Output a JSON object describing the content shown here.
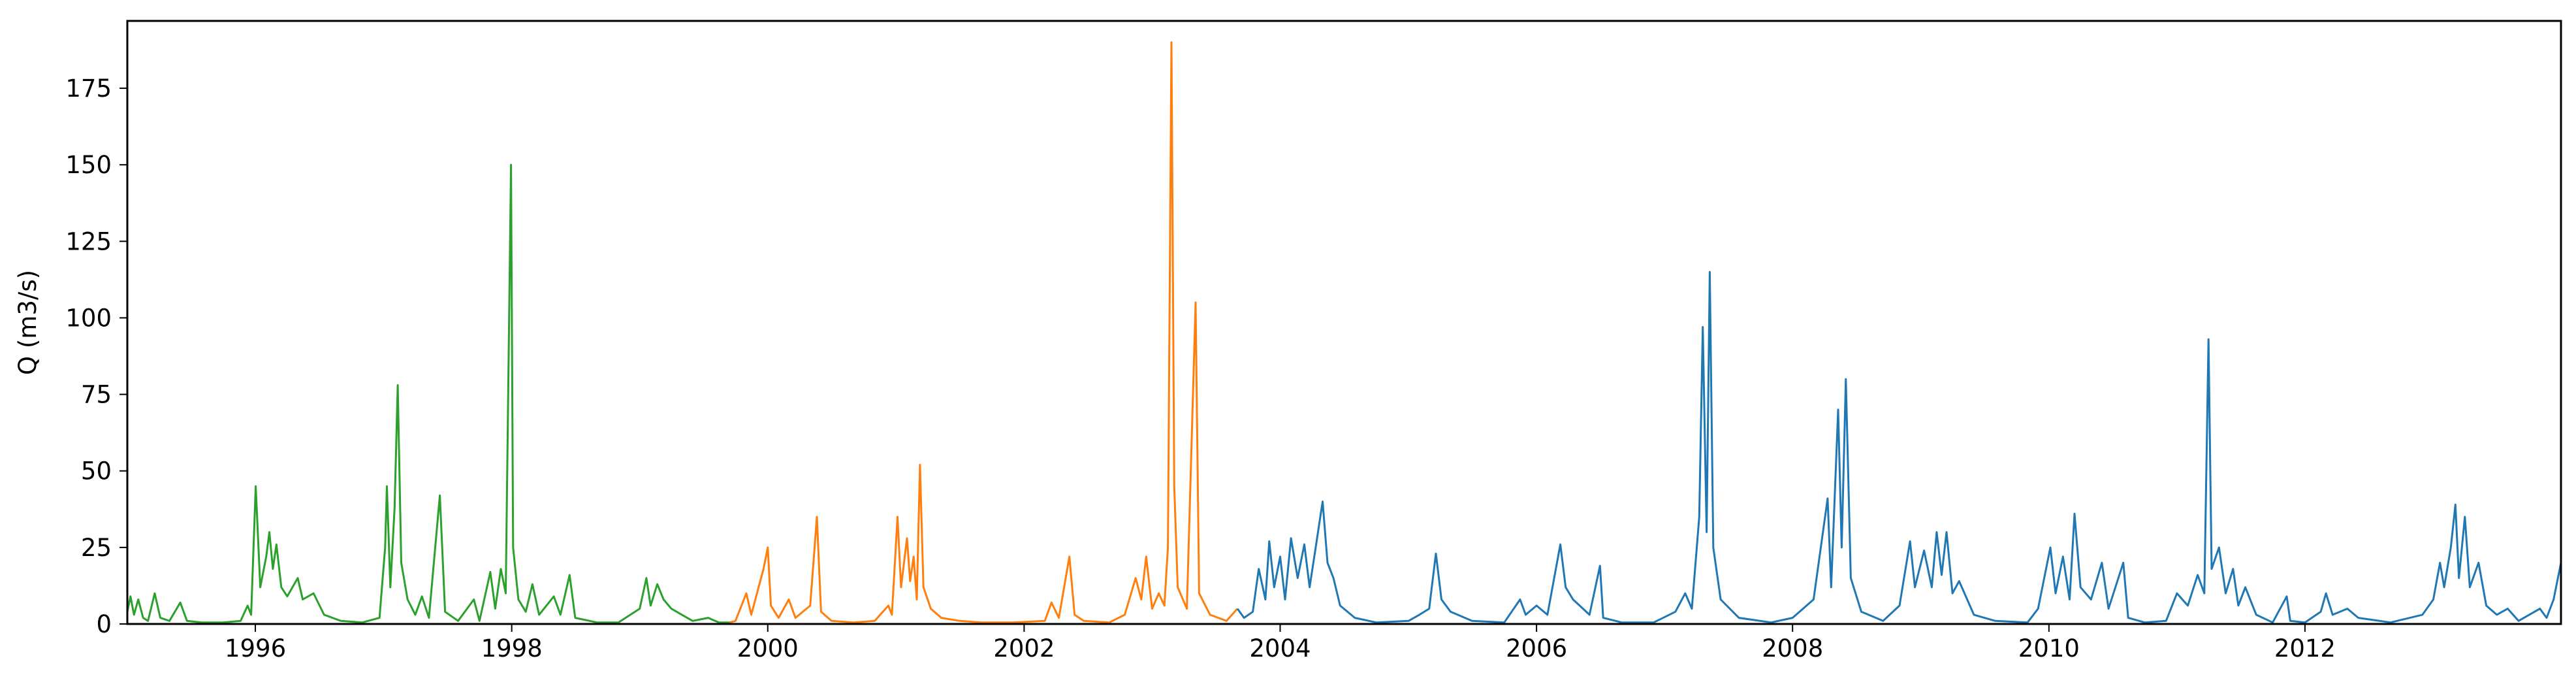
{
  "chart_data": {
    "type": "line",
    "title": "",
    "xlabel": "",
    "ylabel": "Q (m3/s)",
    "x_range": [
      "1995-01-01",
      "2013-12-31"
    ],
    "ylim": [
      0,
      197
    ],
    "x_ticks": [
      "1996",
      "1998",
      "2000",
      "2002",
      "2004",
      "2006",
      "2008",
      "2010",
      "2012"
    ],
    "y_ticks": [
      "0",
      "25",
      "50",
      "75",
      "100",
      "125",
      "150",
      "175"
    ],
    "grid": false,
    "legend": "none",
    "series": [
      {
        "color": "#2ca02c",
        "points": [
          [
            "1995-01-01",
            4
          ],
          [
            "1995-01-10",
            9
          ],
          [
            "1995-01-20",
            3
          ],
          [
            "1995-02-01",
            8
          ],
          [
            "1995-02-15",
            2
          ],
          [
            "1995-03-01",
            1
          ],
          [
            "1995-03-20",
            10
          ],
          [
            "1995-04-05",
            2
          ],
          [
            "1995-05-01",
            1
          ],
          [
            "1995-06-01",
            7
          ],
          [
            "1995-06-20",
            1
          ],
          [
            "1995-08-01",
            0.5
          ],
          [
            "1995-10-01",
            0.5
          ],
          [
            "1995-11-20",
            1
          ],
          [
            "1995-12-10",
            6
          ],
          [
            "1995-12-20",
            3
          ],
          [
            "1996-01-02",
            45
          ],
          [
            "1996-01-15",
            12
          ],
          [
            "1996-02-01",
            22
          ],
          [
            "1996-02-10",
            30
          ],
          [
            "1996-02-20",
            18
          ],
          [
            "1996-03-01",
            26
          ],
          [
            "1996-03-15",
            12
          ],
          [
            "1996-04-01",
            9
          ],
          [
            "1996-05-01",
            15
          ],
          [
            "1996-05-15",
            8
          ],
          [
            "1996-06-15",
            10
          ],
          [
            "1996-07-15",
            3
          ],
          [
            "1996-09-01",
            1
          ],
          [
            "1996-11-01",
            0.5
          ],
          [
            "1996-12-20",
            2
          ],
          [
            "1997-01-05",
            25
          ],
          [
            "1997-01-10",
            45
          ],
          [
            "1997-01-20",
            12
          ],
          [
            "1997-02-01",
            38
          ],
          [
            "1997-02-10",
            78
          ],
          [
            "1997-02-20",
            20
          ],
          [
            "1997-03-10",
            8
          ],
          [
            "1997-04-01",
            3
          ],
          [
            "1997-04-20",
            9
          ],
          [
            "1997-05-10",
            2
          ],
          [
            "1997-06-10",
            42
          ],
          [
            "1997-06-25",
            4
          ],
          [
            "1997-08-01",
            1
          ],
          [
            "1997-09-15",
            8
          ],
          [
            "1997-10-01",
            1
          ],
          [
            "1997-11-01",
            17
          ],
          [
            "1997-11-15",
            5
          ],
          [
            "1997-12-01",
            18
          ],
          [
            "1997-12-15",
            10
          ],
          [
            "1997-12-30",
            150
          ],
          [
            "1998-01-05",
            25
          ],
          [
            "1998-01-20",
            8
          ],
          [
            "1998-02-10",
            4
          ],
          [
            "1998-03-01",
            13
          ],
          [
            "1998-03-20",
            3
          ],
          [
            "1998-05-01",
            9
          ],
          [
            "1998-05-20",
            3
          ],
          [
            "1998-06-15",
            16
          ],
          [
            "1998-07-01",
            2
          ],
          [
            "1998-09-01",
            0.5
          ],
          [
            "1998-11-01",
            0.5
          ],
          [
            "1999-01-01",
            5
          ],
          [
            "1999-01-20",
            15
          ],
          [
            "1999-02-01",
            6
          ],
          [
            "1999-02-20",
            13
          ],
          [
            "1999-03-10",
            8
          ],
          [
            "1999-04-01",
            5
          ],
          [
            "1999-05-01",
            3
          ],
          [
            "1999-06-01",
            1
          ],
          [
            "1999-07-15",
            2
          ],
          [
            "1999-08-15",
            0.5
          ],
          [
            "1999-09-15",
            0.5
          ]
        ]
      },
      {
        "color": "#ff7f0e",
        "points": [
          [
            "1999-09-15",
            0.5
          ],
          [
            "1999-10-01",
            1
          ],
          [
            "1999-11-01",
            10
          ],
          [
            "1999-11-15",
            3
          ],
          [
            "1999-12-20",
            18
          ],
          [
            "2000-01-01",
            25
          ],
          [
            "2000-01-10",
            6
          ],
          [
            "2000-02-01",
            2
          ],
          [
            "2000-03-01",
            8
          ],
          [
            "2000-03-20",
            2
          ],
          [
            "2000-05-01",
            6
          ],
          [
            "2000-05-20",
            35
          ],
          [
            "2000-06-01",
            4
          ],
          [
            "2000-07-01",
            1
          ],
          [
            "2000-09-01",
            0.5
          ],
          [
            "2000-11-01",
            1
          ],
          [
            "2000-12-10",
            6
          ],
          [
            "2000-12-20",
            3
          ],
          [
            "2001-01-05",
            35
          ],
          [
            "2001-01-15",
            12
          ],
          [
            "2001-02-01",
            28
          ],
          [
            "2001-02-10",
            14
          ],
          [
            "2001-02-20",
            22
          ],
          [
            "2001-03-01",
            8
          ],
          [
            "2001-03-10",
            52
          ],
          [
            "2001-03-20",
            12
          ],
          [
            "2001-04-10",
            5
          ],
          [
            "2001-05-10",
            2
          ],
          [
            "2001-07-01",
            1
          ],
          [
            "2001-09-01",
            0.5
          ],
          [
            "2001-12-01",
            0.5
          ],
          [
            "2002-03-01",
            1
          ],
          [
            "2002-03-20",
            7
          ],
          [
            "2002-04-10",
            2
          ],
          [
            "2002-05-10",
            22
          ],
          [
            "2002-05-25",
            3
          ],
          [
            "2002-06-20",
            1
          ],
          [
            "2002-09-01",
            0.5
          ],
          [
            "2002-10-15",
            3
          ],
          [
            "2002-11-15",
            15
          ],
          [
            "2002-12-01",
            8
          ],
          [
            "2002-12-15",
            22
          ],
          [
            "2003-01-01",
            5
          ],
          [
            "2003-01-20",
            10
          ],
          [
            "2003-02-05",
            6
          ],
          [
            "2003-02-15",
            25
          ],
          [
            "2003-02-25",
            190
          ],
          [
            "2003-03-05",
            45
          ],
          [
            "2003-03-15",
            12
          ],
          [
            "2003-04-10",
            5
          ],
          [
            "2003-05-05",
            105
          ],
          [
            "2003-05-15",
            10
          ],
          [
            "2003-06-15",
            3
          ],
          [
            "2003-08-01",
            1
          ],
          [
            "2003-09-01",
            5
          ]
        ]
      },
      {
        "color": "#1f77b4",
        "points": [
          [
            "2003-09-01",
            5
          ],
          [
            "2003-09-20",
            2
          ],
          [
            "2003-10-15",
            4
          ],
          [
            "2003-11-01",
            18
          ],
          [
            "2003-11-20",
            8
          ],
          [
            "2003-12-01",
            27
          ],
          [
            "2003-12-15",
            12
          ],
          [
            "2004-01-01",
            22
          ],
          [
            "2004-01-15",
            8
          ],
          [
            "2004-02-01",
            28
          ],
          [
            "2004-02-20",
            15
          ],
          [
            "2004-03-10",
            26
          ],
          [
            "2004-03-25",
            12
          ],
          [
            "2004-04-10",
            24
          ],
          [
            "2004-05-01",
            40
          ],
          [
            "2004-05-15",
            20
          ],
          [
            "2004-06-01",
            15
          ],
          [
            "2004-06-20",
            6
          ],
          [
            "2004-08-01",
            2
          ],
          [
            "2004-10-01",
            0.5
          ],
          [
            "2005-01-01",
            1
          ],
          [
            "2005-02-01",
            3
          ],
          [
            "2005-03-01",
            5
          ],
          [
            "2005-03-20",
            23
          ],
          [
            "2005-04-05",
            8
          ],
          [
            "2005-05-01",
            4
          ],
          [
            "2005-07-01",
            1
          ],
          [
            "2005-10-01",
            0.5
          ],
          [
            "2005-11-15",
            8
          ],
          [
            "2005-12-01",
            3
          ],
          [
            "2006-01-01",
            6
          ],
          [
            "2006-02-01",
            3
          ],
          [
            "2006-03-10",
            26
          ],
          [
            "2006-03-25",
            12
          ],
          [
            "2006-04-15",
            8
          ],
          [
            "2006-06-01",
            3
          ],
          [
            "2006-07-01",
            19
          ],
          [
            "2006-07-10",
            2
          ],
          [
            "2006-09-01",
            0.5
          ],
          [
            "2006-12-01",
            0.5
          ],
          [
            "2007-02-01",
            4
          ],
          [
            "2007-03-01",
            10
          ],
          [
            "2007-03-20",
            5
          ],
          [
            "2007-04-10",
            35
          ],
          [
            "2007-04-20",
            97
          ],
          [
            "2007-05-01",
            30
          ],
          [
            "2007-05-10",
            115
          ],
          [
            "2007-05-20",
            25
          ],
          [
            "2007-06-10",
            8
          ],
          [
            "2007-08-01",
            2
          ],
          [
            "2007-11-01",
            0.5
          ],
          [
            "2008-01-01",
            2
          ],
          [
            "2008-03-01",
            8
          ],
          [
            "2008-04-10",
            41
          ],
          [
            "2008-04-20",
            12
          ],
          [
            "2008-05-10",
            70
          ],
          [
            "2008-05-20",
            25
          ],
          [
            "2008-06-01",
            80
          ],
          [
            "2008-06-15",
            15
          ],
          [
            "2008-07-15",
            4
          ],
          [
            "2008-09-15",
            1
          ],
          [
            "2008-11-01",
            6
          ],
          [
            "2008-12-01",
            27
          ],
          [
            "2008-12-15",
            12
          ],
          [
            "2009-01-10",
            24
          ],
          [
            "2009-02-01",
            12
          ],
          [
            "2009-02-15",
            30
          ],
          [
            "2009-03-01",
            16
          ],
          [
            "2009-03-15",
            30
          ],
          [
            "2009-04-01",
            10
          ],
          [
            "2009-04-20",
            14
          ],
          [
            "2009-06-01",
            3
          ],
          [
            "2009-08-01",
            1
          ],
          [
            "2009-11-01",
            0.5
          ],
          [
            "2009-12-01",
            5
          ],
          [
            "2010-01-05",
            25
          ],
          [
            "2010-01-20",
            10
          ],
          [
            "2010-02-10",
            22
          ],
          [
            "2010-03-01",
            8
          ],
          [
            "2010-03-15",
            36
          ],
          [
            "2010-04-01",
            12
          ],
          [
            "2010-05-01",
            8
          ],
          [
            "2010-06-01",
            20
          ],
          [
            "2010-06-20",
            5
          ],
          [
            "2010-08-01",
            20
          ],
          [
            "2010-08-15",
            2
          ],
          [
            "2010-10-01",
            0.5
          ],
          [
            "2010-12-01",
            1
          ],
          [
            "2011-01-01",
            10
          ],
          [
            "2011-02-01",
            6
          ],
          [
            "2011-03-01",
            16
          ],
          [
            "2011-03-20",
            10
          ],
          [
            "2011-04-01",
            93
          ],
          [
            "2011-04-10",
            18
          ],
          [
            "2011-05-01",
            25
          ],
          [
            "2011-05-20",
            10
          ],
          [
            "2011-06-10",
            18
          ],
          [
            "2011-06-25",
            6
          ],
          [
            "2011-07-15",
            12
          ],
          [
            "2011-08-15",
            3
          ],
          [
            "2011-10-01",
            0.5
          ],
          [
            "2011-11-10",
            9
          ],
          [
            "2011-11-20",
            1
          ],
          [
            "2012-01-01",
            0.5
          ],
          [
            "2012-02-15",
            4
          ],
          [
            "2012-03-01",
            10
          ],
          [
            "2012-03-20",
            3
          ],
          [
            "2012-05-01",
            5
          ],
          [
            "2012-06-01",
            2
          ],
          [
            "2012-09-01",
            0.5
          ],
          [
            "2012-12-01",
            3
          ],
          [
            "2013-01-01",
            8
          ],
          [
            "2013-01-20",
            20
          ],
          [
            "2013-02-01",
            12
          ],
          [
            "2013-02-20",
            25
          ],
          [
            "2013-03-05",
            39
          ],
          [
            "2013-03-15",
            15
          ],
          [
            "2013-04-01",
            35
          ],
          [
            "2013-04-15",
            12
          ],
          [
            "2013-05-10",
            20
          ],
          [
            "2013-06-01",
            6
          ],
          [
            "2013-07-01",
            3
          ],
          [
            "2013-08-01",
            5
          ],
          [
            "2013-09-01",
            1
          ],
          [
            "2013-11-01",
            5
          ],
          [
            "2013-11-20",
            2
          ],
          [
            "2013-12-10",
            8
          ],
          [
            "2013-12-31",
            20
          ]
        ]
      }
    ]
  }
}
